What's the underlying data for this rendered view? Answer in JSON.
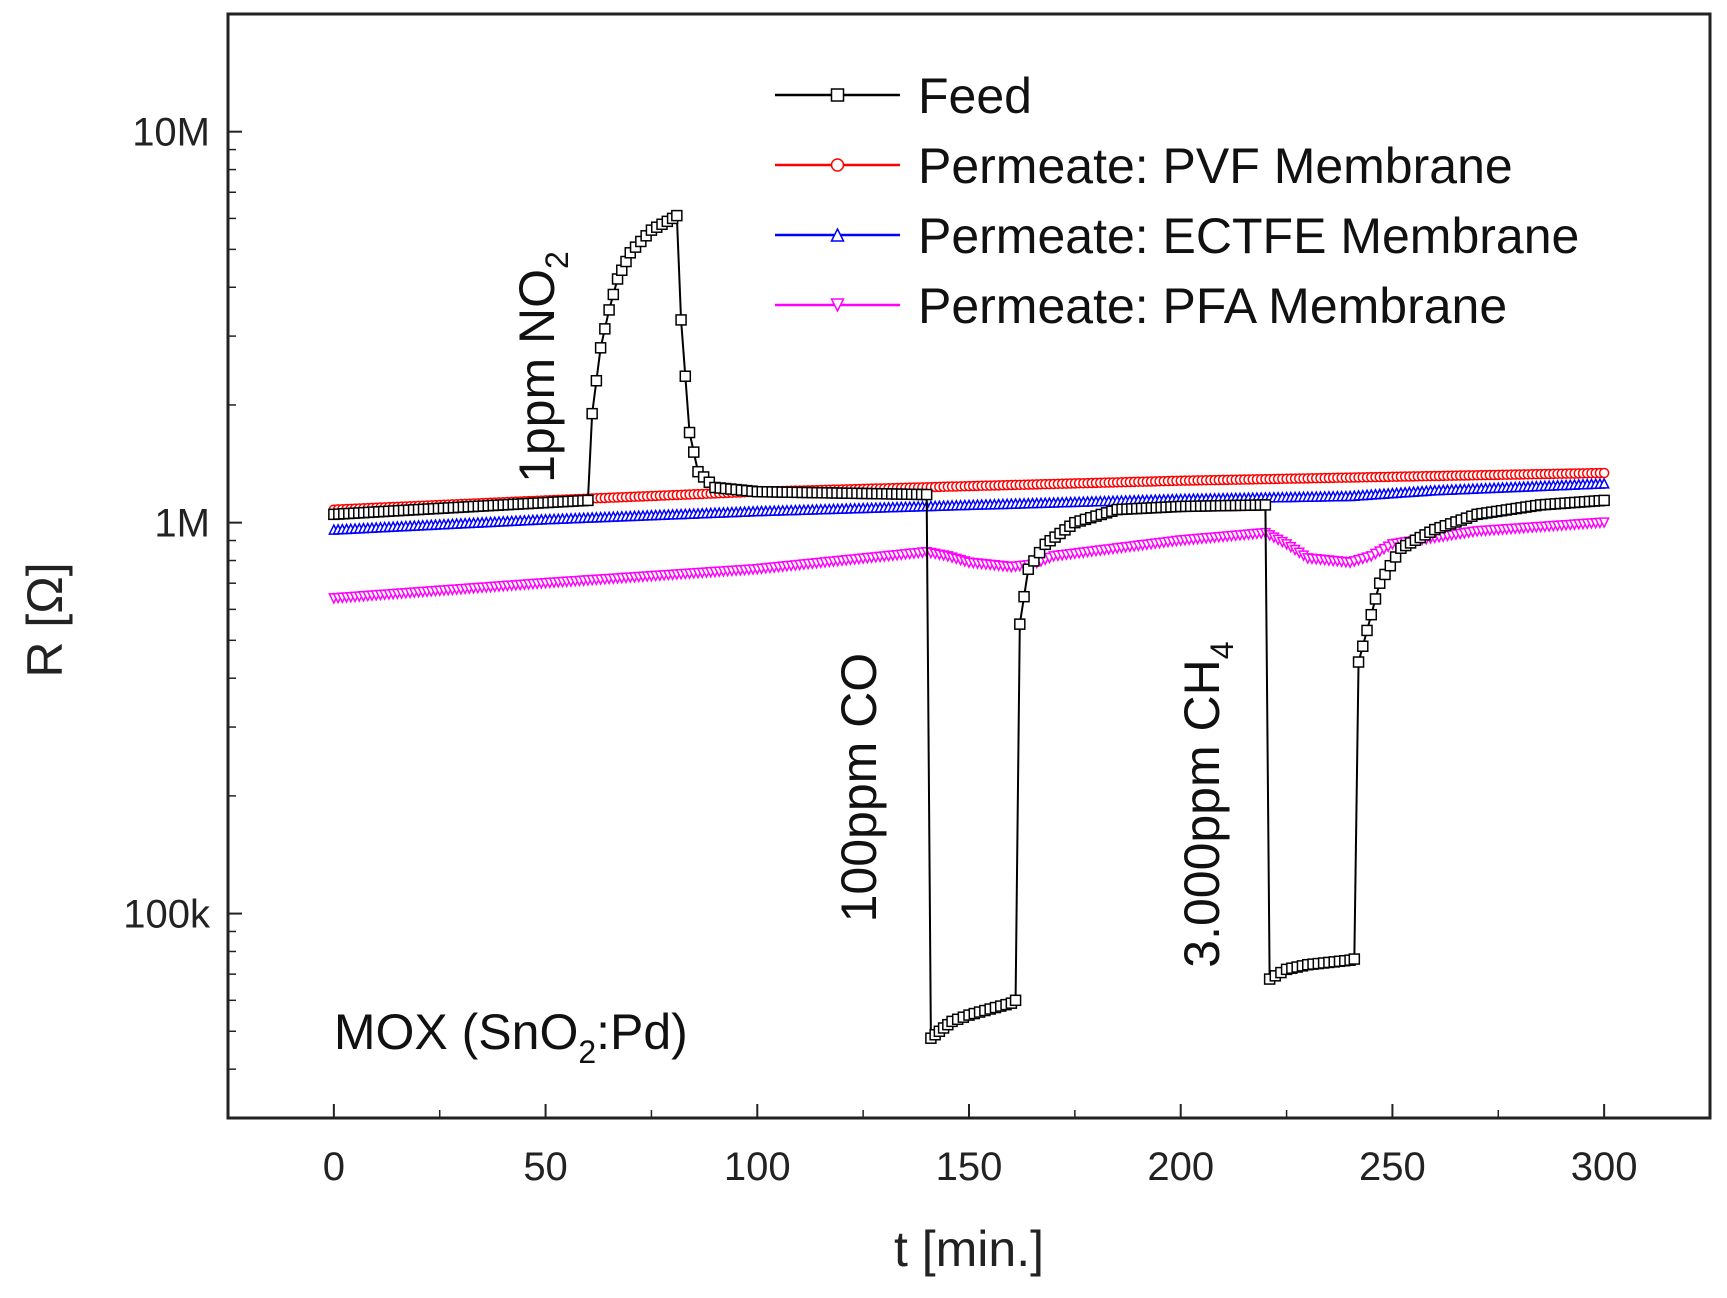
{
  "chart_data": {
    "type": "line",
    "xlabel": "t [min.]",
    "ylabel": "R [Ω]",
    "x_scale": "linear",
    "y_scale": "log",
    "xlim": [
      -25,
      325
    ],
    "ylim": [
      30000,
      20000000
    ],
    "x_ticks": [
      0,
      50,
      100,
      150,
      200,
      250,
      300
    ],
    "x_tick_labels": [
      "0",
      "50",
      "100",
      "150",
      "200",
      "250",
      "300"
    ],
    "y_ticks": [
      100000,
      1000000,
      10000000
    ],
    "y_tick_labels": [
      "100k",
      "1M",
      "10M"
    ],
    "grid": false,
    "legend_position": "top-right",
    "series": [
      {
        "name": "Feed",
        "color": "#000000",
        "marker": "square",
        "points": [
          [
            0,
            1050000
          ],
          [
            20,
            1080000
          ],
          [
            40,
            1110000
          ],
          [
            60,
            1140000
          ],
          [
            61,
            1900000
          ],
          [
            63,
            2800000
          ],
          [
            65,
            3500000
          ],
          [
            67,
            4200000
          ],
          [
            70,
            4900000
          ],
          [
            75,
            5600000
          ],
          [
            80,
            6000000
          ],
          [
            81,
            6100000
          ],
          [
            82,
            3300000
          ],
          [
            84,
            1700000
          ],
          [
            86,
            1350000
          ],
          [
            90,
            1230000
          ],
          [
            100,
            1200000
          ],
          [
            120,
            1190000
          ],
          [
            140,
            1180000
          ],
          [
            141,
            48000
          ],
          [
            143,
            50000
          ],
          [
            146,
            53000
          ],
          [
            150,
            55000
          ],
          [
            155,
            57000
          ],
          [
            160,
            59000
          ],
          [
            161,
            60000
          ],
          [
            162,
            550000
          ],
          [
            164,
            760000
          ],
          [
            168,
            880000
          ],
          [
            175,
            1000000
          ],
          [
            185,
            1080000
          ],
          [
            200,
            1100000
          ],
          [
            220,
            1110000
          ],
          [
            221,
            68000
          ],
          [
            225,
            72000
          ],
          [
            230,
            74000
          ],
          [
            235,
            75000
          ],
          [
            240,
            76000
          ],
          [
            241,
            76500
          ],
          [
            242,
            440000
          ],
          [
            244,
            530000
          ],
          [
            247,
            700000
          ],
          [
            252,
            860000
          ],
          [
            260,
            960000
          ],
          [
            270,
            1050000
          ],
          [
            285,
            1110000
          ],
          [
            300,
            1140000
          ]
        ]
      },
      {
        "name": "Permeate: PVF Membrane",
        "color": "#ff0000",
        "marker": "circle",
        "points": [
          [
            0,
            1080000
          ],
          [
            50,
            1140000
          ],
          [
            100,
            1200000
          ],
          [
            150,
            1240000
          ],
          [
            200,
            1280000
          ],
          [
            250,
            1310000
          ],
          [
            300,
            1340000
          ]
        ]
      },
      {
        "name": "Permeate: ECTFE Membrane",
        "color": "#0000ff",
        "marker": "triangle-up",
        "points": [
          [
            0,
            960000
          ],
          [
            50,
            1020000
          ],
          [
            100,
            1070000
          ],
          [
            150,
            1110000
          ],
          [
            200,
            1150000
          ],
          [
            240,
            1170000
          ],
          [
            260,
            1210000
          ],
          [
            300,
            1260000
          ]
        ]
      },
      {
        "name": "Permeate: PFA Membrane",
        "color": "#ff00ff",
        "marker": "triangle-down",
        "points": [
          [
            0,
            640000
          ],
          [
            50,
            700000
          ],
          [
            100,
            760000
          ],
          [
            140,
            840000
          ],
          [
            145,
            820000
          ],
          [
            150,
            790000
          ],
          [
            160,
            770000
          ],
          [
            165,
            780000
          ],
          [
            170,
            820000
          ],
          [
            200,
            900000
          ],
          [
            220,
            940000
          ],
          [
            225,
            880000
          ],
          [
            230,
            810000
          ],
          [
            240,
            790000
          ],
          [
            245,
            820000
          ],
          [
            250,
            880000
          ],
          [
            270,
            950000
          ],
          [
            300,
            1000000
          ]
        ]
      }
    ],
    "annotations": [
      {
        "text": "1ppm NO",
        "sub": "2",
        "x": 52,
        "y": 2500000,
        "rotation": -90
      },
      {
        "text": "100ppm CO",
        "sub": "",
        "x": 128,
        "y": 210000,
        "rotation": -90
      },
      {
        "text": "3.000ppm CH",
        "sub": "4",
        "x": 209,
        "y": 190000,
        "rotation": -90
      },
      {
        "text": "MOX (SnO",
        "sub": "2",
        "suffix": ":Pd)",
        "x": 0,
        "y": 45000,
        "rotation": 0
      }
    ]
  }
}
